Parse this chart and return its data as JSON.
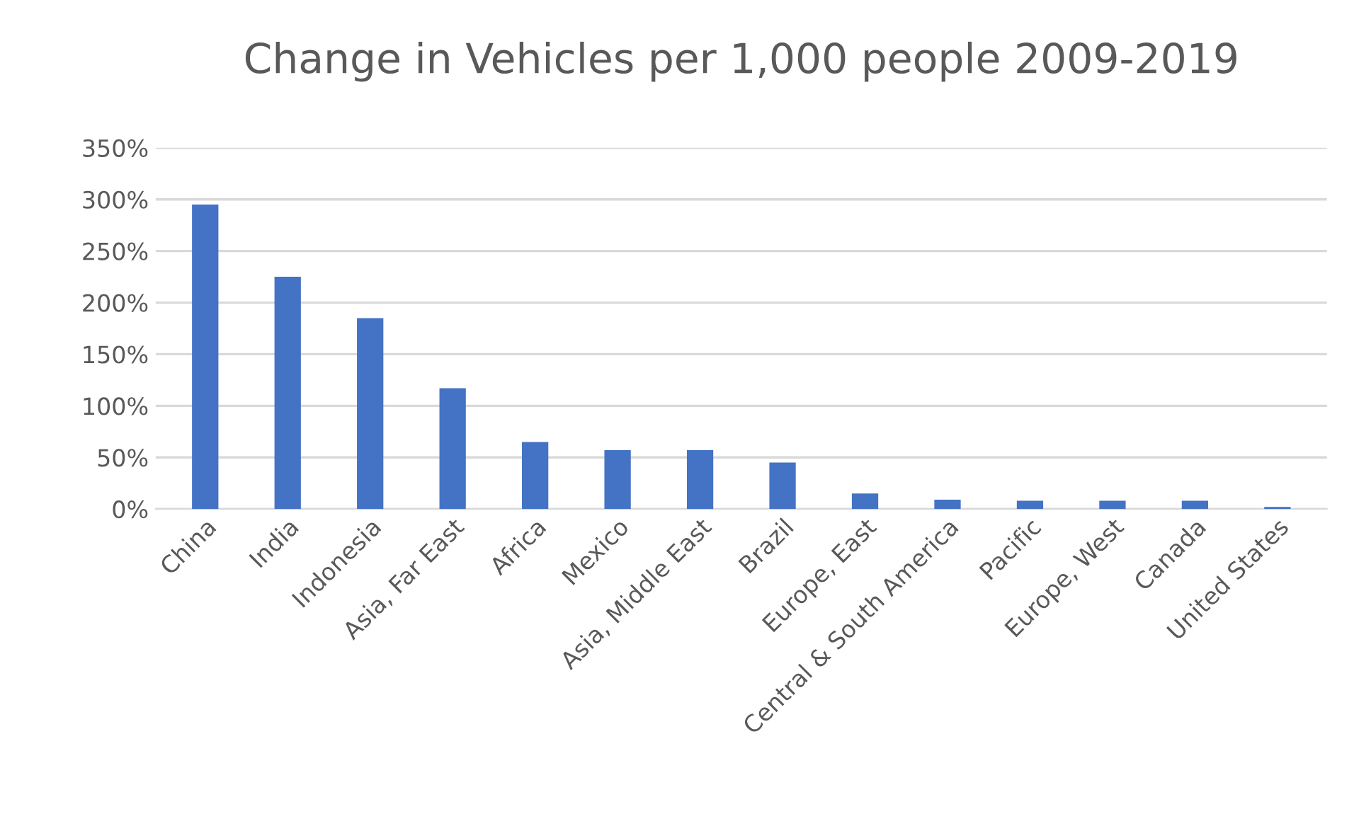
{
  "chart_data": {
    "type": "bar",
    "title": "Change in Vehicles per 1,000 people 2009-2019",
    "categories": [
      "China",
      "India",
      "Indonesia",
      "Asia, Far East",
      "Africa",
      "Mexico",
      "Asia, Middle East",
      "Brazil",
      "Europe, East",
      "Central & South America",
      "Pacific",
      "Europe, West",
      "Canada",
      "United States"
    ],
    "values": [
      295,
      225,
      185,
      117,
      65,
      57,
      57,
      45,
      15,
      9,
      8,
      8,
      8,
      2
    ],
    "color": "#4472c4",
    "ylim": [
      0,
      350
    ],
    "yticks": [
      {
        "value": 0,
        "label": "0%"
      },
      {
        "value": 50,
        "label": "50%"
      },
      {
        "value": 100,
        "label": "100%"
      },
      {
        "value": 150,
        "label": "150%"
      },
      {
        "value": 200,
        "label": "200%"
      },
      {
        "value": 250,
        "label": "250%"
      },
      {
        "value": 300,
        "label": "300%"
      },
      {
        "value": 350,
        "label": "350%"
      }
    ],
    "grid": "y"
  }
}
